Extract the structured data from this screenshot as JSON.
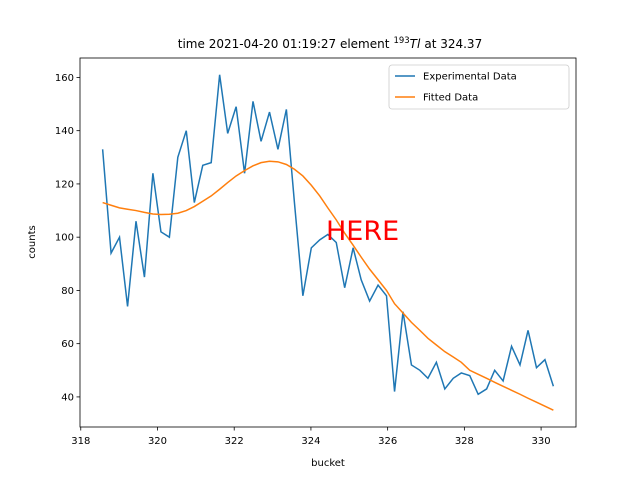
{
  "chart_data": {
    "type": "line",
    "title": {
      "text": "time 2021-04-20 01:19:27 element",
      "mass": "193",
      "symbol": "Tl",
      "suffix": "at 324.37"
    },
    "x_label": "bucket",
    "y_label": "counts",
    "annotation": "HERE",
    "x": [
      318.57,
      318.79,
      319.01,
      319.22,
      319.44,
      319.66,
      319.88,
      320.09,
      320.31,
      320.53,
      320.75,
      320.96,
      321.18,
      321.4,
      321.62,
      321.83,
      322.05,
      322.27,
      322.49,
      322.7,
      322.92,
      323.14,
      323.36,
      323.57,
      323.79,
      324.01,
      324.23,
      324.44,
      324.66,
      324.88,
      325.1,
      325.31,
      325.53,
      325.75,
      325.97,
      326.18,
      326.4,
      326.62,
      326.84,
      327.05,
      327.27,
      327.49,
      327.71,
      327.92,
      328.14,
      328.36,
      328.58,
      328.79,
      329.01,
      329.23,
      329.45,
      329.66,
      329.88,
      330.1,
      330.32
    ],
    "series": [
      {
        "name": "Experimental Data",
        "color": "#1f77b4",
        "values": [
          133,
          94,
          100,
          74,
          106,
          85,
          124,
          102,
          100,
          130,
          140,
          113,
          127,
          128,
          161,
          139,
          149,
          124,
          151,
          136,
          147,
          133,
          148,
          113,
          78,
          96,
          99,
          101,
          98,
          81,
          96,
          84,
          76,
          82,
          78,
          42,
          72,
          52,
          50,
          47,
          53,
          43,
          47,
          49,
          48,
          41,
          43,
          50,
          46,
          59,
          52,
          65,
          51,
          54,
          44
        ]
      },
      {
        "name": "Fitted Data",
        "color": "#ff7f0e",
        "values": [
          113,
          112,
          111,
          110.5,
          110,
          109.3,
          108.7,
          108.5,
          108.6,
          109,
          110,
          111.5,
          113.5,
          115.5,
          118,
          120.5,
          123,
          125,
          126.8,
          128,
          128.5,
          128.3,
          127.3,
          125.5,
          123,
          119.5,
          115.5,
          111,
          106.5,
          101.5,
          97,
          92.5,
          88,
          84,
          80,
          75,
          71.5,
          68,
          65,
          62,
          59.5,
          57,
          55,
          53,
          50,
          48.5,
          47,
          45.5,
          44,
          42.5,
          41,
          39.5,
          38,
          36.5,
          35
        ]
      }
    ],
    "xlim": [
      317.98,
      330.91
    ],
    "xticks": [
      318,
      320,
      322,
      324,
      326,
      328,
      330
    ],
    "ylim": [
      28.7,
      167.3
    ],
    "yticks": [
      40,
      60,
      80,
      100,
      120,
      140,
      160
    ],
    "legend": "upper right"
  }
}
